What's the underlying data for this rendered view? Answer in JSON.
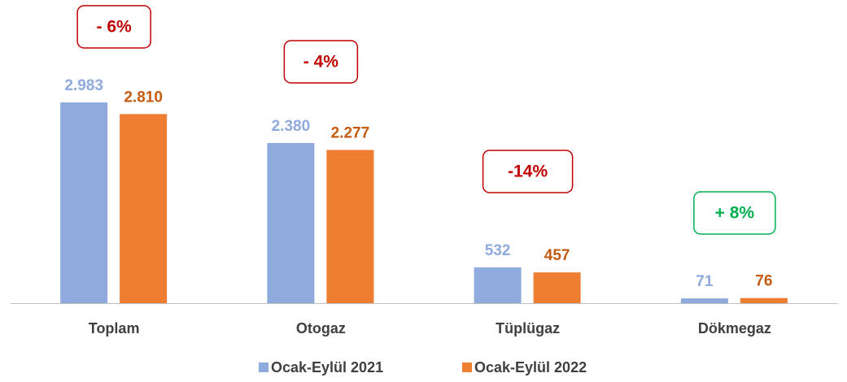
{
  "chart_data": {
    "type": "bar",
    "categories": [
      "Toplam",
      "Otogaz",
      "Tüplügaz",
      "Dökmegaz"
    ],
    "series": [
      {
        "name": "Ocak-Eylül 2021",
        "color": "#8faadc",
        "label_color": "#8faadc",
        "values": [
          2983,
          2380,
          532,
          71
        ],
        "value_labels": [
          "2.983",
          "2.380",
          "532",
          "71"
        ]
      },
      {
        "name": "Ocak-Eylül 2022",
        "color": "#ed7d31",
        "label_color": "#c55a11",
        "values": [
          2810,
          2277,
          457,
          76
        ],
        "value_labels": [
          "2.810",
          "2.277",
          "457",
          "76"
        ]
      }
    ],
    "annotations": [
      {
        "text": "- 6%",
        "color": "#c00000"
      },
      {
        "text": "- 4%",
        "color": "#c00000"
      },
      {
        "text": "-14%",
        "color": "#c00000"
      },
      {
        "text": "+ 8%",
        "color": "#00b050"
      }
    ],
    "legend": "bottom"
  }
}
